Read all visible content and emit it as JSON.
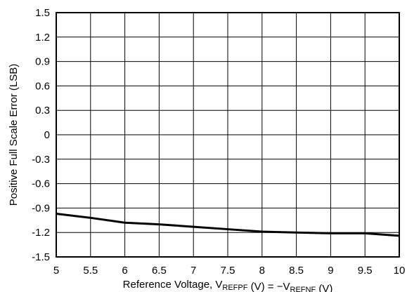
{
  "chart_data": {
    "type": "line",
    "xlabel": {
      "parts": [
        {
          "text": "Reference Voltage, V",
          "sub": false
        },
        {
          "text": "REFPF",
          "sub": true
        },
        {
          "text": " (V) = −V",
          "sub": false
        },
        {
          "text": "REFNF",
          "sub": true
        },
        {
          "text": " (V)",
          "sub": false
        }
      ]
    },
    "ylabel": "Positive Full Scale Error (LSB)",
    "xlim": [
      5,
      10
    ],
    "ylim": [
      -1.5,
      1.5
    ],
    "x_ticks": [
      5,
      5.5,
      6,
      6.5,
      7,
      7.5,
      8,
      8.5,
      9,
      9.5,
      10
    ],
    "x_tick_labels": [
      "5",
      "5.5",
      "6",
      "6.5",
      "7",
      "7.5",
      "8",
      "8.5",
      "9",
      "9.5",
      "10"
    ],
    "y_ticks": [
      1.5,
      1.2,
      0.9,
      0.6,
      0.3,
      0,
      -0.3,
      -0.6,
      -0.9,
      -1.2,
      -1.5
    ],
    "y_tick_labels": [
      "1.5",
      "1.2",
      "0.9",
      "0.6",
      "0.3",
      "0",
      "-0.3",
      "-0.6",
      "-0.9",
      "-1.2",
      "-1.5"
    ],
    "grid": true,
    "series": [
      {
        "x": [
          5,
          5.5,
          6,
          6.5,
          7,
          7.5,
          8,
          8.5,
          9,
          9.5,
          10
        ],
        "y": [
          -0.97,
          -1.02,
          -1.08,
          -1.1,
          -1.13,
          -1.16,
          -1.19,
          -1.2,
          -1.21,
          -1.21,
          -1.24
        ],
        "color": "#000000"
      }
    ]
  }
}
